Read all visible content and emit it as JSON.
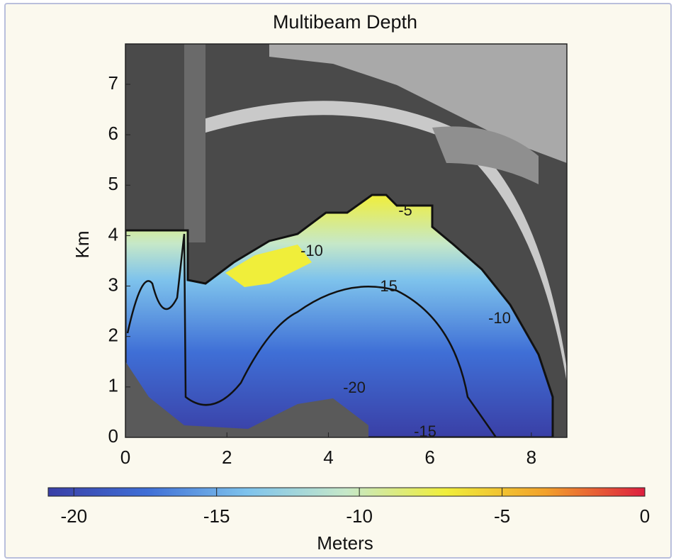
{
  "chart_data": {
    "type": "heatmap",
    "title": "Multibeam Depth",
    "ylabel": "Km",
    "xlim": [
      0,
      8.7
    ],
    "ylim": [
      0,
      7.8
    ],
    "xticks": [
      0,
      2,
      4,
      6,
      8
    ],
    "yticks": [
      0,
      1,
      2,
      3,
      4,
      5,
      6,
      7
    ],
    "colorbar": {
      "label": "Meters",
      "clim": [
        -20.9,
        0
      ],
      "ticks": [
        -20,
        -15,
        -10,
        -5,
        0
      ],
      "colors": [
        "#3a3fa6",
        "#3f6fd6",
        "#7ec3ec",
        "#c6e8c8",
        "#f0ee3a",
        "#f2a12a",
        "#dd1f3f"
      ]
    },
    "contour_labels": [
      -15,
      -10,
      -5,
      -10,
      -20,
      -15
    ]
  }
}
